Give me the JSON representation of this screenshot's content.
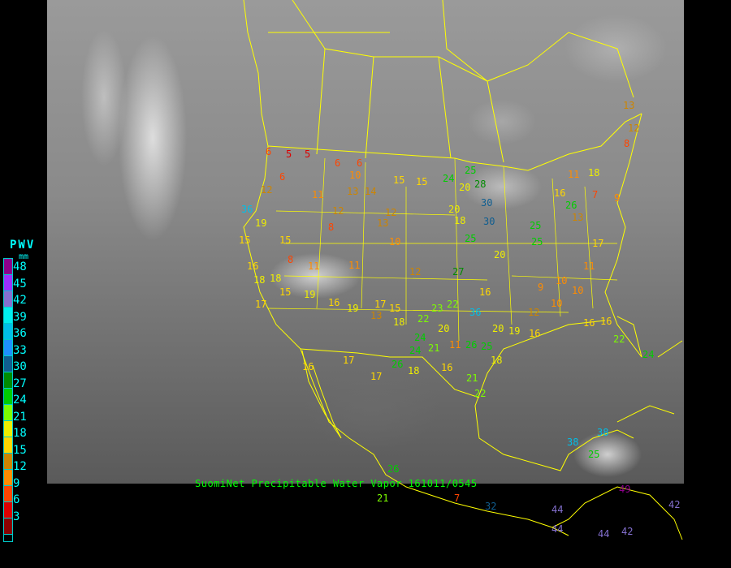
{
  "caption": "SuomiNet Precipitable Water Vapor 161011/0545",
  "legend": {
    "title": "PWV",
    "unit": "mm",
    "bins": [
      {
        "label": "48",
        "color": "#8b008b"
      },
      {
        "label": "45",
        "color": "#9b30ff"
      },
      {
        "label": "42",
        "color": "#8470d0"
      },
      {
        "label": "39",
        "color": "#00eeee"
      },
      {
        "label": "36",
        "color": "#00bfe8"
      },
      {
        "label": "33",
        "color": "#1e90ff"
      },
      {
        "label": "30",
        "color": "#105e90"
      },
      {
        "label": "27",
        "color": "#008b00"
      },
      {
        "label": "24",
        "color": "#00cd00"
      },
      {
        "label": "21",
        "color": "#7cfc00"
      },
      {
        "label": "18",
        "color": "#eeee00"
      },
      {
        "label": "15",
        "color": "#ffd700"
      },
      {
        "label": "12",
        "color": "#cd8500"
      },
      {
        "label": "9",
        "color": "#ff8c00"
      },
      {
        "label": "6",
        "color": "#ff4500"
      },
      {
        "label": "3",
        "color": "#dd0000"
      },
      {
        "label": "",
        "color": "#8b0000"
      }
    ]
  },
  "map": {
    "border_color": "#ffff00"
  },
  "stations": [
    5,
    5,
    6,
    6,
    10,
    6,
    6,
    12,
    11,
    13,
    14,
    15,
    15,
    24,
    25,
    20,
    28,
    30,
    30,
    20,
    18,
    12,
    13,
    12,
    8,
    15,
    15,
    19,
    36,
    8,
    11,
    11,
    10,
    12,
    27,
    16,
    25,
    20,
    25,
    25,
    16,
    11,
    7,
    9,
    13,
    17,
    11,
    10,
    9,
    12,
    10,
    10,
    16,
    16,
    22,
    24,
    20,
    19,
    16,
    11,
    20,
    21,
    24,
    24,
    26,
    22,
    23,
    18,
    17,
    15,
    13,
    19,
    16,
    19,
    15,
    17,
    18,
    17,
    17,
    16,
    21,
    26,
    25,
    18,
    22,
    36,
    38,
    38,
    25,
    26,
    32,
    44,
    44,
    42,
    49,
    44,
    42,
    21,
    7,
    13,
    12,
    8,
    18,
    26,
    18,
    22,
    16,
    16,
    18
  ]
}
